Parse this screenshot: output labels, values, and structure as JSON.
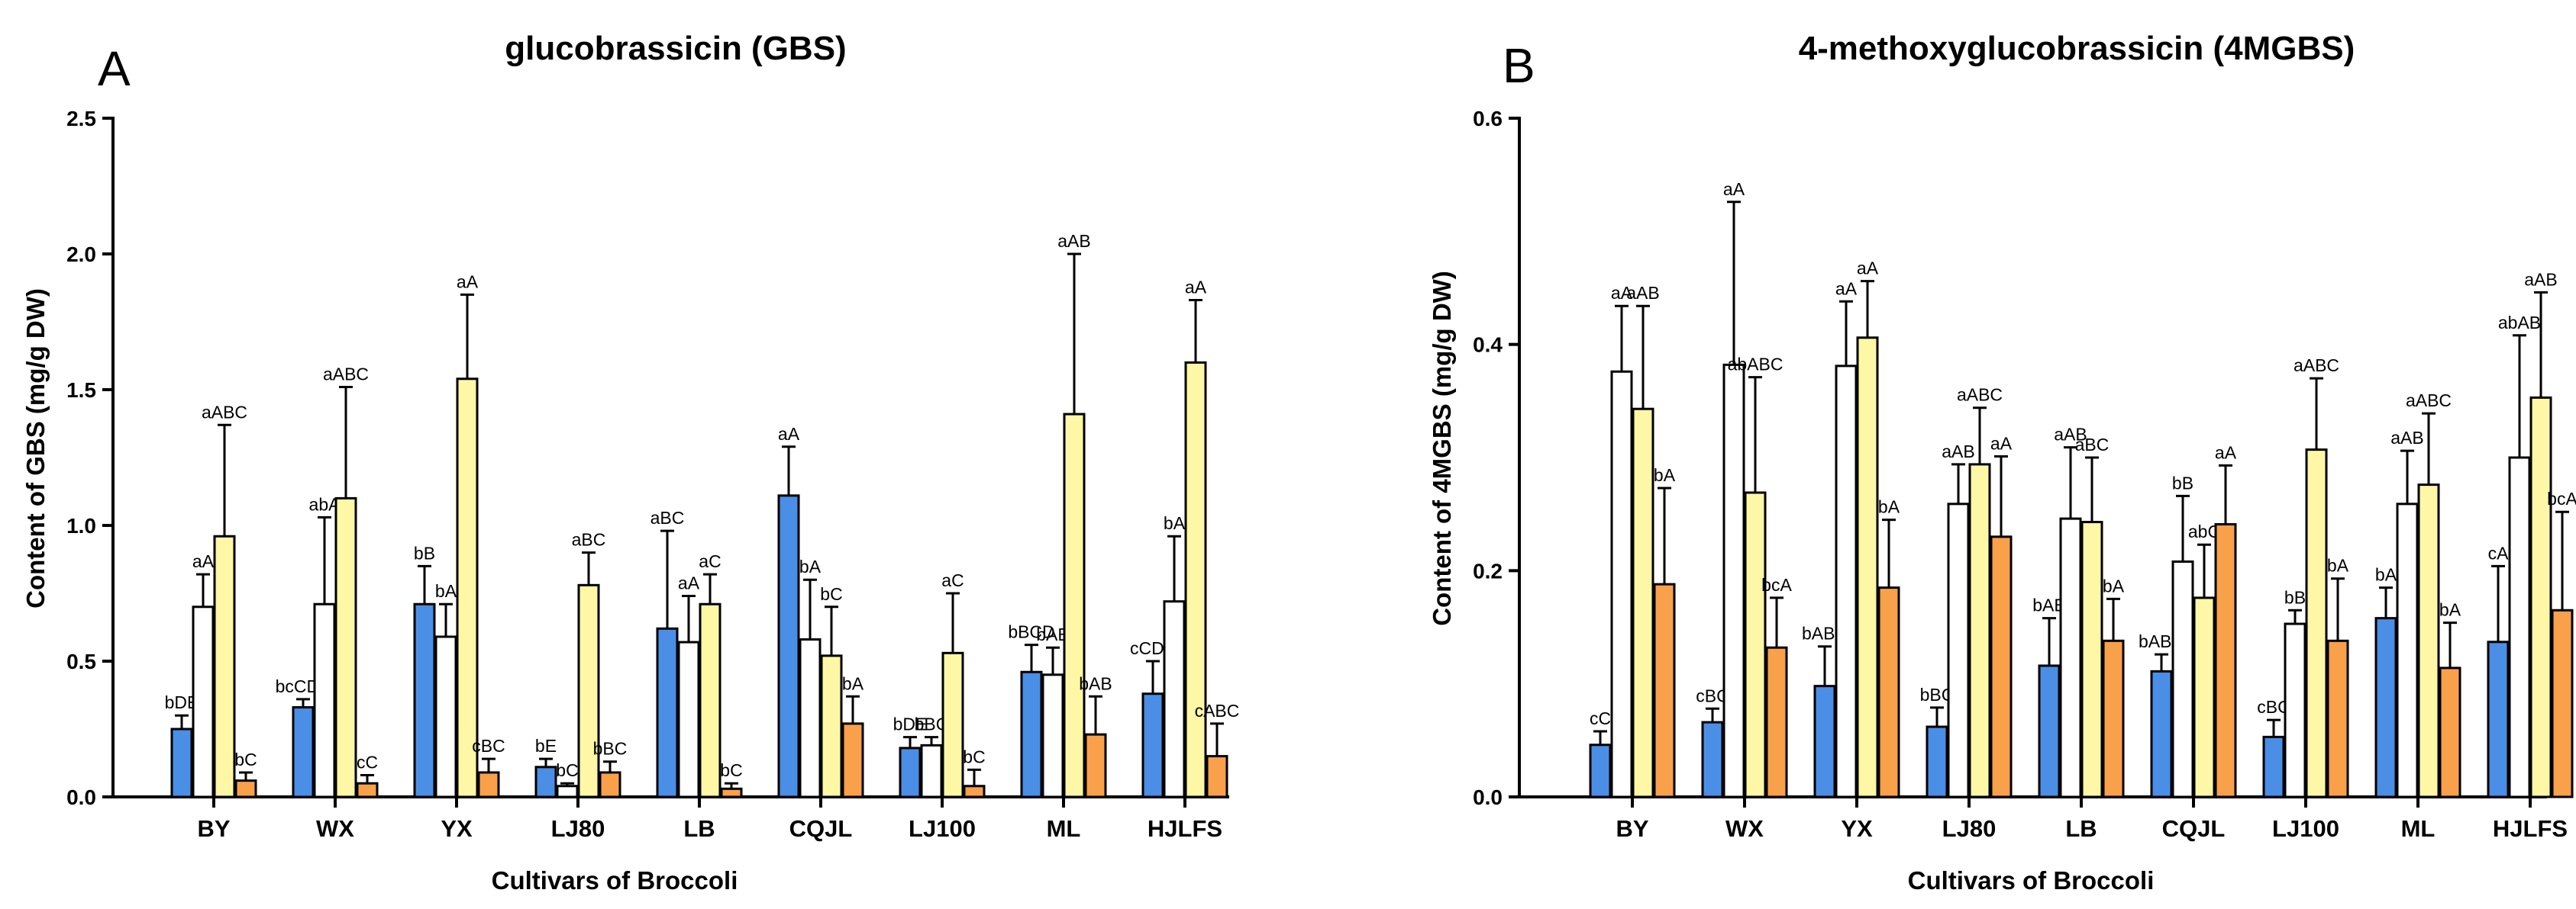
{
  "colors": {
    "series": [
      "#4a8ee6",
      "#ffffff",
      "#fdf7a6",
      "#f8a04a"
    ],
    "stroke": "#000000",
    "text": "#000000"
  },
  "chart_data": [
    {
      "type": "bar",
      "panel_label": "A",
      "title": "glucobrassicin (GBS)",
      "xlabel": "Cultivars of Broccoli",
      "ylabel": "Content of  GBS (mg/g DW)",
      "ylim": [
        0,
        2.5
      ],
      "yticks": [
        0.0,
        0.5,
        1.0,
        1.5,
        2.0,
        2.5
      ],
      "ytick_labels": [
        "0.0",
        "0.5",
        "1.0",
        "1.5",
        "2.0",
        "2.5"
      ],
      "categories": [
        "BY",
        "WX",
        "YX",
        "LJ80",
        "LB",
        "CQJL",
        "LJ100",
        "ML",
        "HJLFS"
      ],
      "series": [
        {
          "values": [
            0.25,
            0.33,
            0.71,
            0.11,
            0.62,
            1.11,
            0.18,
            0.46,
            0.38
          ],
          "errors": [
            0.05,
            0.03,
            0.14,
            0.03,
            0.36,
            0.18,
            0.04,
            0.1,
            0.12
          ],
          "labels": [
            "bDE",
            "bcCDE",
            "bB",
            "bE",
            "aBC",
            "aA",
            "bDE",
            "bBCD",
            "cCDE"
          ]
        },
        {
          "values": [
            0.7,
            0.71,
            0.59,
            0.04,
            0.57,
            0.58,
            0.19,
            0.45,
            0.72
          ],
          "errors": [
            0.12,
            0.32,
            0.12,
            0.01,
            0.17,
            0.22,
            0.03,
            0.1,
            0.24
          ],
          "labels": [
            "aA",
            "abA",
            "bA",
            "bC",
            "aA",
            "bA",
            "bBC",
            "bAB",
            "bA"
          ]
        },
        {
          "values": [
            0.96,
            1.1,
            1.54,
            0.78,
            0.71,
            0.52,
            0.53,
            1.41,
            1.6
          ],
          "errors": [
            0.41,
            0.41,
            0.31,
            0.12,
            0.11,
            0.18,
            0.22,
            0.59,
            0.23
          ],
          "labels": [
            "aABC",
            "aABC",
            "aA",
            "aBC",
            "aC",
            "bC",
            "aC",
            "aAB",
            "aA"
          ]
        },
        {
          "values": [
            0.06,
            0.05,
            0.09,
            0.09,
            0.03,
            0.27,
            0.04,
            0.23,
            0.15
          ],
          "errors": [
            0.03,
            0.03,
            0.05,
            0.04,
            0.02,
            0.1,
            0.06,
            0.14,
            0.12
          ],
          "labels": [
            "bC",
            "cC",
            "cBC",
            "bBC",
            "bC",
            "bA",
            "bC",
            "bAB",
            "cABC"
          ]
        }
      ]
    },
    {
      "type": "bar",
      "panel_label": "B",
      "title": "4-methoxyglucobrassicin (4MGBS)",
      "xlabel": "Cultivars of Broccoli",
      "ylabel": "Content of  4MGBS (mg/g DW)",
      "ylim": [
        0,
        0.6
      ],
      "yticks": [
        0.0,
        0.2,
        0.4,
        0.6
      ],
      "ytick_labels": [
        "0.0",
        "0.2",
        "0.4",
        "0.6"
      ],
      "categories": [
        "BY",
        "WX",
        "YX",
        "LJ80",
        "LB",
        "CQJL",
        "LJ100",
        "ML",
        "HJLFS"
      ],
      "series": [
        {
          "values": [
            0.046,
            0.066,
            0.098,
            0.062,
            0.116,
            0.111,
            0.053,
            0.158,
            0.137
          ],
          "errors": [
            0.012,
            0.012,
            0.035,
            0.017,
            0.042,
            0.015,
            0.015,
            0.027,
            0.067
          ],
          "labels": [
            "cC",
            "cBC",
            "bABC",
            "bBC",
            "bAB",
            "bABC",
            "cBC",
            "bA",
            "cA"
          ]
        },
        {
          "values": [
            0.376,
            0.382,
            0.381,
            0.259,
            0.246,
            0.208,
            0.153,
            0.259,
            0.3
          ],
          "errors": [
            0.058,
            0.144,
            0.057,
            0.035,
            0.063,
            0.058,
            0.012,
            0.047,
            0.108
          ],
          "labels": [
            "aA",
            "aA",
            "aA",
            "aAB",
            "aAB",
            "bB",
            "bB",
            "aAB",
            "abAB"
          ]
        },
        {
          "values": [
            0.343,
            0.269,
            0.406,
            0.294,
            0.243,
            0.176,
            0.307,
            0.276,
            0.353
          ],
          "errors": [
            0.091,
            0.102,
            0.05,
            0.05,
            0.057,
            0.047,
            0.063,
            0.063,
            0.093
          ],
          "labels": [
            "aAB",
            "abABC",
            "aA",
            "aABC",
            "aBC",
            "abC",
            "aABC",
            "aABC",
            "aAB"
          ]
        },
        {
          "values": [
            0.188,
            0.132,
            0.185,
            0.23,
            0.138,
            0.241,
            0.138,
            0.114,
            0.165
          ],
          "errors": [
            0.085,
            0.044,
            0.06,
            0.071,
            0.037,
            0.052,
            0.055,
            0.04,
            0.087
          ],
          "labels": [
            "bA",
            "bcA",
            "bA",
            "aA",
            "bA",
            "aA",
            "bA",
            "bA",
            "bcA"
          ]
        }
      ]
    }
  ]
}
